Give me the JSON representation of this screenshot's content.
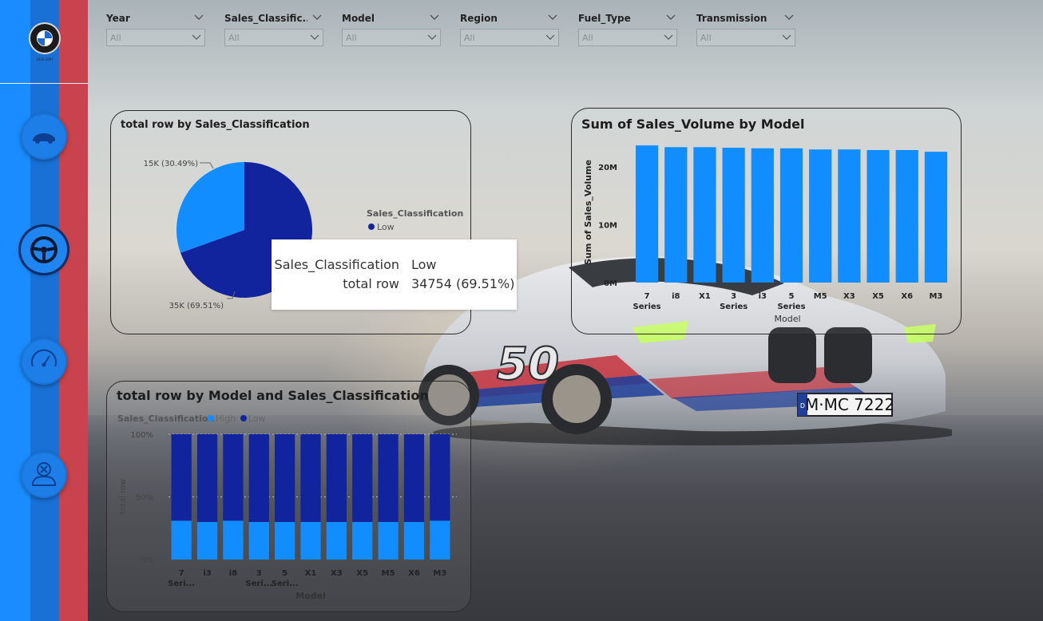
{
  "colors": {
    "light_blue": "#118dff",
    "dark_blue": "#12239e",
    "sidebar_blue": "#1a8cff",
    "sidebar_red": "#c8434d"
  },
  "sidebar": {
    "logo_caption": "1916-1997",
    "nav_icons": [
      "car-icon",
      "steering-wheel-icon",
      "speedometer-icon",
      "car-service-icon"
    ]
  },
  "slicers": [
    {
      "title": "Year",
      "value": "All"
    },
    {
      "title": "Sales_Classific...",
      "value": "All"
    },
    {
      "title": "Model",
      "value": "All"
    },
    {
      "title": "Region",
      "value": "All"
    },
    {
      "title": "Fuel_Type",
      "value": "All"
    },
    {
      "title": "Transmission",
      "value": "All"
    }
  ],
  "car": {
    "plate": "M·MC 7222",
    "plate_badge": "D",
    "number": "50"
  },
  "tooltip": {
    "row1_label": "Sales_Classification",
    "row1_value": "Low",
    "row2_label": "total row",
    "row2_value": "34754 (69.51%)"
  },
  "chart_data": [
    {
      "type": "pie",
      "title": "total row by Sales_Classification",
      "legend_title": "Sales_Classification",
      "legend_items": [
        {
          "label": "Low",
          "color": "#12239e"
        }
      ],
      "slices": [
        {
          "name": "Low",
          "value": 34754,
          "percent": 69.51,
          "label": "35K (69.51%)",
          "color": "#12239e"
        },
        {
          "name": "High",
          "value": 15246,
          "percent": 30.49,
          "label": "15K (30.49%)",
          "color": "#118dff"
        }
      ]
    },
    {
      "type": "bar",
      "title": "Sum of Sales_Volume by Model",
      "xlabel": "Model",
      "ylabel": "Sum of Sales_Volume",
      "categories": [
        "7 Series",
        "i8",
        "X1",
        "3 Series",
        "i3",
        "5 Series",
        "M5",
        "X3",
        "X5",
        "X6",
        "M3"
      ],
      "category_lines": [
        [
          "7",
          "Series"
        ],
        [
          "i8"
        ],
        [
          "X1"
        ],
        [
          "3",
          "Series"
        ],
        [
          "i3"
        ],
        [
          "5",
          "Series"
        ],
        [
          "M5"
        ],
        [
          "X3"
        ],
        [
          "X5"
        ],
        [
          "X6"
        ],
        [
          "M3"
        ]
      ],
      "values": [
        23700000,
        23400000,
        23400000,
        23300000,
        23200000,
        23200000,
        23000000,
        23000000,
        22900000,
        22900000,
        22600000
      ],
      "yticks": [
        {
          "v": 0,
          "label": "0M"
        },
        {
          "v": 10000000,
          "label": "10M"
        },
        {
          "v": 20000000,
          "label": "20M"
        }
      ],
      "ylim": [
        0,
        24000000
      ],
      "color": "#118dff"
    },
    {
      "type": "bar",
      "stacked": "100%",
      "title": "total row by Model and Sales_Classification",
      "legend_title": "Sales_Classification",
      "xlabel": "Model",
      "ylabel": "total row",
      "categories": [
        "7 Seri...",
        "i3",
        "i8",
        "3 Seri...",
        "5 Seri...",
        "X1",
        "X3",
        "X5",
        "M5",
        "X6",
        "M3"
      ],
      "category_lines": [
        [
          "7",
          "Seri..."
        ],
        [
          "i3"
        ],
        [
          "i8"
        ],
        [
          "3",
          "Seri..."
        ],
        [
          "5",
          "Seri..."
        ],
        [
          "X1"
        ],
        [
          "X3"
        ],
        [
          "X5"
        ],
        [
          "M5"
        ],
        [
          "X6"
        ],
        [
          "M3"
        ]
      ],
      "yticks": [
        {
          "v": 0,
          "label": "0%"
        },
        {
          "v": 50,
          "label": "50%"
        },
        {
          "v": 100,
          "label": "100%"
        }
      ],
      "series": [
        {
          "name": "High",
          "color": "#118dff",
          "values": [
            31,
            30,
            31,
            30,
            30,
            30,
            30,
            30,
            30,
            30,
            31
          ]
        },
        {
          "name": "Low",
          "color": "#12239e",
          "values": [
            69,
            70,
            69,
            70,
            70,
            70,
            70,
            70,
            70,
            70,
            69
          ]
        }
      ]
    }
  ]
}
